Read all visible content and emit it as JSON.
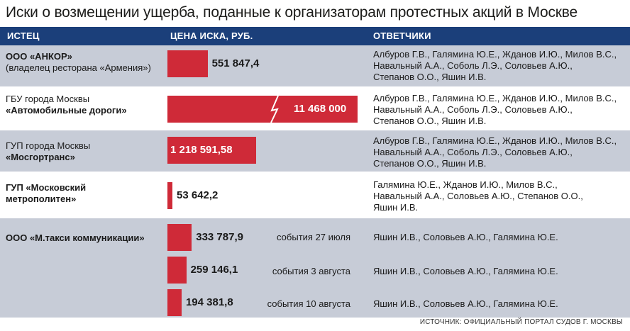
{
  "title": "Иски о возмещении ущерба, поданные к организаторам протестных акций в Москве",
  "header": {
    "col_plaintiff": "ИСТЕЦ",
    "col_price": "ЦЕНА ИСКА, РУБ.",
    "col_defendants": "ОТВЕТЧИКИ"
  },
  "source": "ИСТОЧНИК: ОФИЦИАЛЬНЫЙ ПОРТАЛ СУДОВ Г. МОСКВЫ",
  "colors": {
    "bar": "#cf2a38",
    "header_bg": "#1b3f7a",
    "row_shade": "#c7ccd7"
  },
  "rows": [
    {
      "plaintiff_line1": "ООО «АНКОР»",
      "plaintiff_line2": "(владелец ресторана «Армения»)",
      "defendants": [
        "Албуров Г.В., Галямина Ю.Е., Жданов И.Ю., Милов В.С.,",
        "Навальный А.А., Соболь Л.Э., Соловьев А.Ю.,",
        "Степанов О.О., Яшин И.В."
      ]
    },
    {
      "plaintiff_line1": "ГБУ города Москвы",
      "plaintiff_line2": "«Автомобильные дороги»",
      "defendants": [
        "Албуров Г.В., Галямина Ю.Е., Жданов И.Ю., Милов В.С.,",
        "Навальный А.А., Соболь Л.Э., Соловьев А.Ю.,",
        "Степанов О.О., Яшин И.В."
      ]
    },
    {
      "plaintiff_line1": "ГУП города Москвы",
      "plaintiff_line2": "«Мосгортранс»",
      "defendants": [
        "Албуров Г.В., Галямина Ю.Е., Жданов И.Ю., Милов В.С.,",
        "Навальный А.А., Соболь Л.Э., Соловьев А.Ю.,",
        "Степанов О.О., Яшин И.В."
      ]
    },
    {
      "plaintiff_line1": "ГУП «Московский",
      "plaintiff_line2": "метрополитен»",
      "defendants": [
        "Галямина Ю.Е., Жданов И.Ю., Милов В.С.,",
        "Навальный А.А., Соловьев А.Ю., Степанов О.О.,",
        "Яшин И.В."
      ]
    },
    {
      "plaintiff_line1": "ООО «М.такси коммуникации»",
      "plaintiff_line2": "",
      "defendants": []
    }
  ],
  "taxi_sub": [
    {
      "event": "события 27 июля",
      "defendants": "Яшин И.В., Соловьев А.Ю., Галямина Ю.Е."
    },
    {
      "event": "события 3 августа",
      "defendants": "Яшин И.В., Соловьев А.Ю., Галямина Ю.Е."
    },
    {
      "event": "события 10 августа",
      "defendants": "Яшин И.В., Соловьев А.Ю., Галямина Ю.Е."
    }
  ],
  "chart_data": {
    "type": "bar",
    "orientation": "horizontal",
    "categories": [
      "ООО «АНКОР»",
      "ГБУ города Москвы «Автомобильные дороги»",
      "ГУП города Москвы «Мосгортранс»",
      "ГУП «Московский метрополитен»",
      "ООО «М.такси коммуникации» — события 27 июля",
      "ООО «М.такси коммуникации» — события 3 августа",
      "ООО «М.такси коммуникации» — события 10 августа"
    ],
    "values": [
      551847.4,
      11468000,
      1218591.58,
      53642.2,
      333787.9,
      259146.1,
      194381.8
    ],
    "labels": [
      "551 847,4",
      "11 468 000",
      "1 218 591,58",
      "53 642,2",
      "333 787,9",
      "259 146,1",
      "194 381,8"
    ],
    "broken_bar_index": 1,
    "ylabel": "ЦЕНА ИСКА, РУБ."
  }
}
